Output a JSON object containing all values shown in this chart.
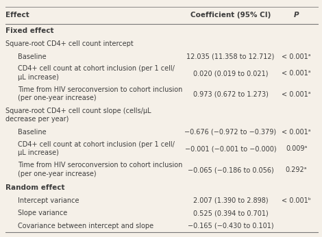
{
  "bg_color": "#f5f0e8",
  "header": [
    "Effect",
    "Coefficient (95% CI)",
    "P"
  ],
  "rows": [
    {
      "type": "section",
      "col1": "Fixed effect",
      "col2": "",
      "col3": ""
    },
    {
      "type": "subsection",
      "col1": "Square-root CD4+ cell count intercept",
      "col2": "",
      "col3": ""
    },
    {
      "type": "data",
      "col1": "Baseline",
      "col2": "12.035 (11.358 to 12.712)",
      "col3": "< 0.001ᵃ"
    },
    {
      "type": "data2",
      "col1": "CD4+ cell count at cohort inclusion (per 1 cell/",
      "col1b": "μL increase)",
      "col2": "0.020 (0.019 to 0.021)",
      "col3": "< 0.001ᵃ"
    },
    {
      "type": "data2",
      "col1": "Time from HIV seroconversion to cohort inclusion",
      "col1b": "(per one-year increase)",
      "col2": "0.973 (0.672 to 1.273)",
      "col3": "< 0.001ᵃ"
    },
    {
      "type": "subsection2",
      "col1": "Square-root CD4+ cell count slope (cells/μL",
      "col1b": "decrease per year)",
      "col2": "",
      "col3": ""
    },
    {
      "type": "data",
      "col1": "Baseline",
      "col2": "−0.676 (−0.972 to −0.379)",
      "col3": "< 0.001ᵃ"
    },
    {
      "type": "data2",
      "col1": "CD4+ cell count at cohort inclusion (per 1 cell/",
      "col1b": "μL increase)",
      "col2": "−0.001 (−0.001 to −0.000)",
      "col3": "0.009ᵃ"
    },
    {
      "type": "data2",
      "col1": "Time from HIV seroconversion to cohort inclusion",
      "col1b": "(per one-year increase)",
      "col2": "−0.065 (−0.186 to 0.056)",
      "col3": "0.292ᵃ"
    },
    {
      "type": "section",
      "col1": "Random effect",
      "col2": "",
      "col3": ""
    },
    {
      "type": "data",
      "col1": "Intercept variance",
      "col2": "2.007 (1.390 to 2.898)",
      "col3": "< 0.001ᵇ"
    },
    {
      "type": "data",
      "col1": "Slope variance",
      "col2": "0.525 (0.394 to 0.701)",
      "col3": ""
    },
    {
      "type": "data",
      "col1": "Covariance between intercept and slope",
      "col2": "−0.165 (−0.430 to 0.101)",
      "col3": ""
    }
  ],
  "text_color": "#3d3d3d",
  "line_color": "#777777",
  "fs_header": 7.5,
  "fs_section": 7.5,
  "fs_data": 7.0
}
